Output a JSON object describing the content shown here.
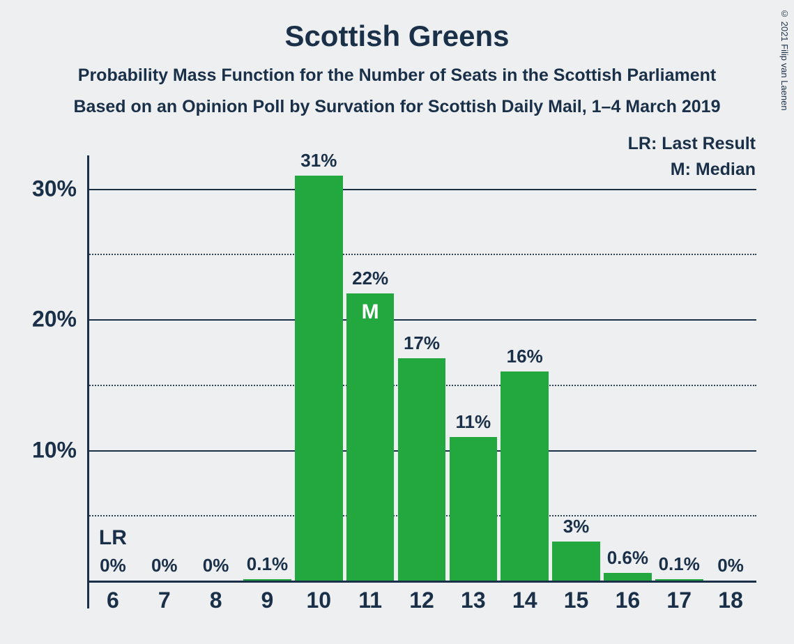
{
  "title": "Scottish Greens",
  "subtitle1": "Probability Mass Function for the Number of Seats in the Scottish Parliament",
  "subtitle2": "Based on an Opinion Poll by Survation for Scottish Daily Mail, 1–4 March 2019",
  "copyright": "© 2021 Filip van Laenen",
  "legend": {
    "lr": "LR: Last Result",
    "m": "M: Median"
  },
  "chart": {
    "type": "bar",
    "bar_color": "#22a83f",
    "text_color": "#1a3048",
    "background_color": "#eeeff0",
    "grid_solid_color": "#1a3048",
    "grid_dotted_color": "#1a3048",
    "bar_width": 0.93,
    "title_fontsize": 42,
    "subtitle_fontsize": 25,
    "tick_fontsize": 32,
    "barlabel_fontsize": 26,
    "ylim": [
      0,
      32
    ],
    "y_major_ticks": [
      10,
      20,
      30
    ],
    "y_minor_ticks": [
      5,
      15,
      25
    ],
    "y_tick_suffix": "%",
    "categories": [
      "6",
      "7",
      "8",
      "9",
      "10",
      "11",
      "12",
      "13",
      "14",
      "15",
      "16",
      "17",
      "18"
    ],
    "values": [
      0,
      0,
      0,
      0.1,
      31,
      22,
      17,
      11,
      16,
      3,
      0.6,
      0.1,
      0
    ],
    "value_labels": [
      "0%",
      "0%",
      "0%",
      "0.1%",
      "31%",
      "22%",
      "17%",
      "11%",
      "16%",
      "3%",
      "0.6%",
      "0.1%",
      "0%"
    ],
    "lr_index": 0,
    "lr_text": "LR",
    "median_index": 5,
    "median_text": "M"
  }
}
